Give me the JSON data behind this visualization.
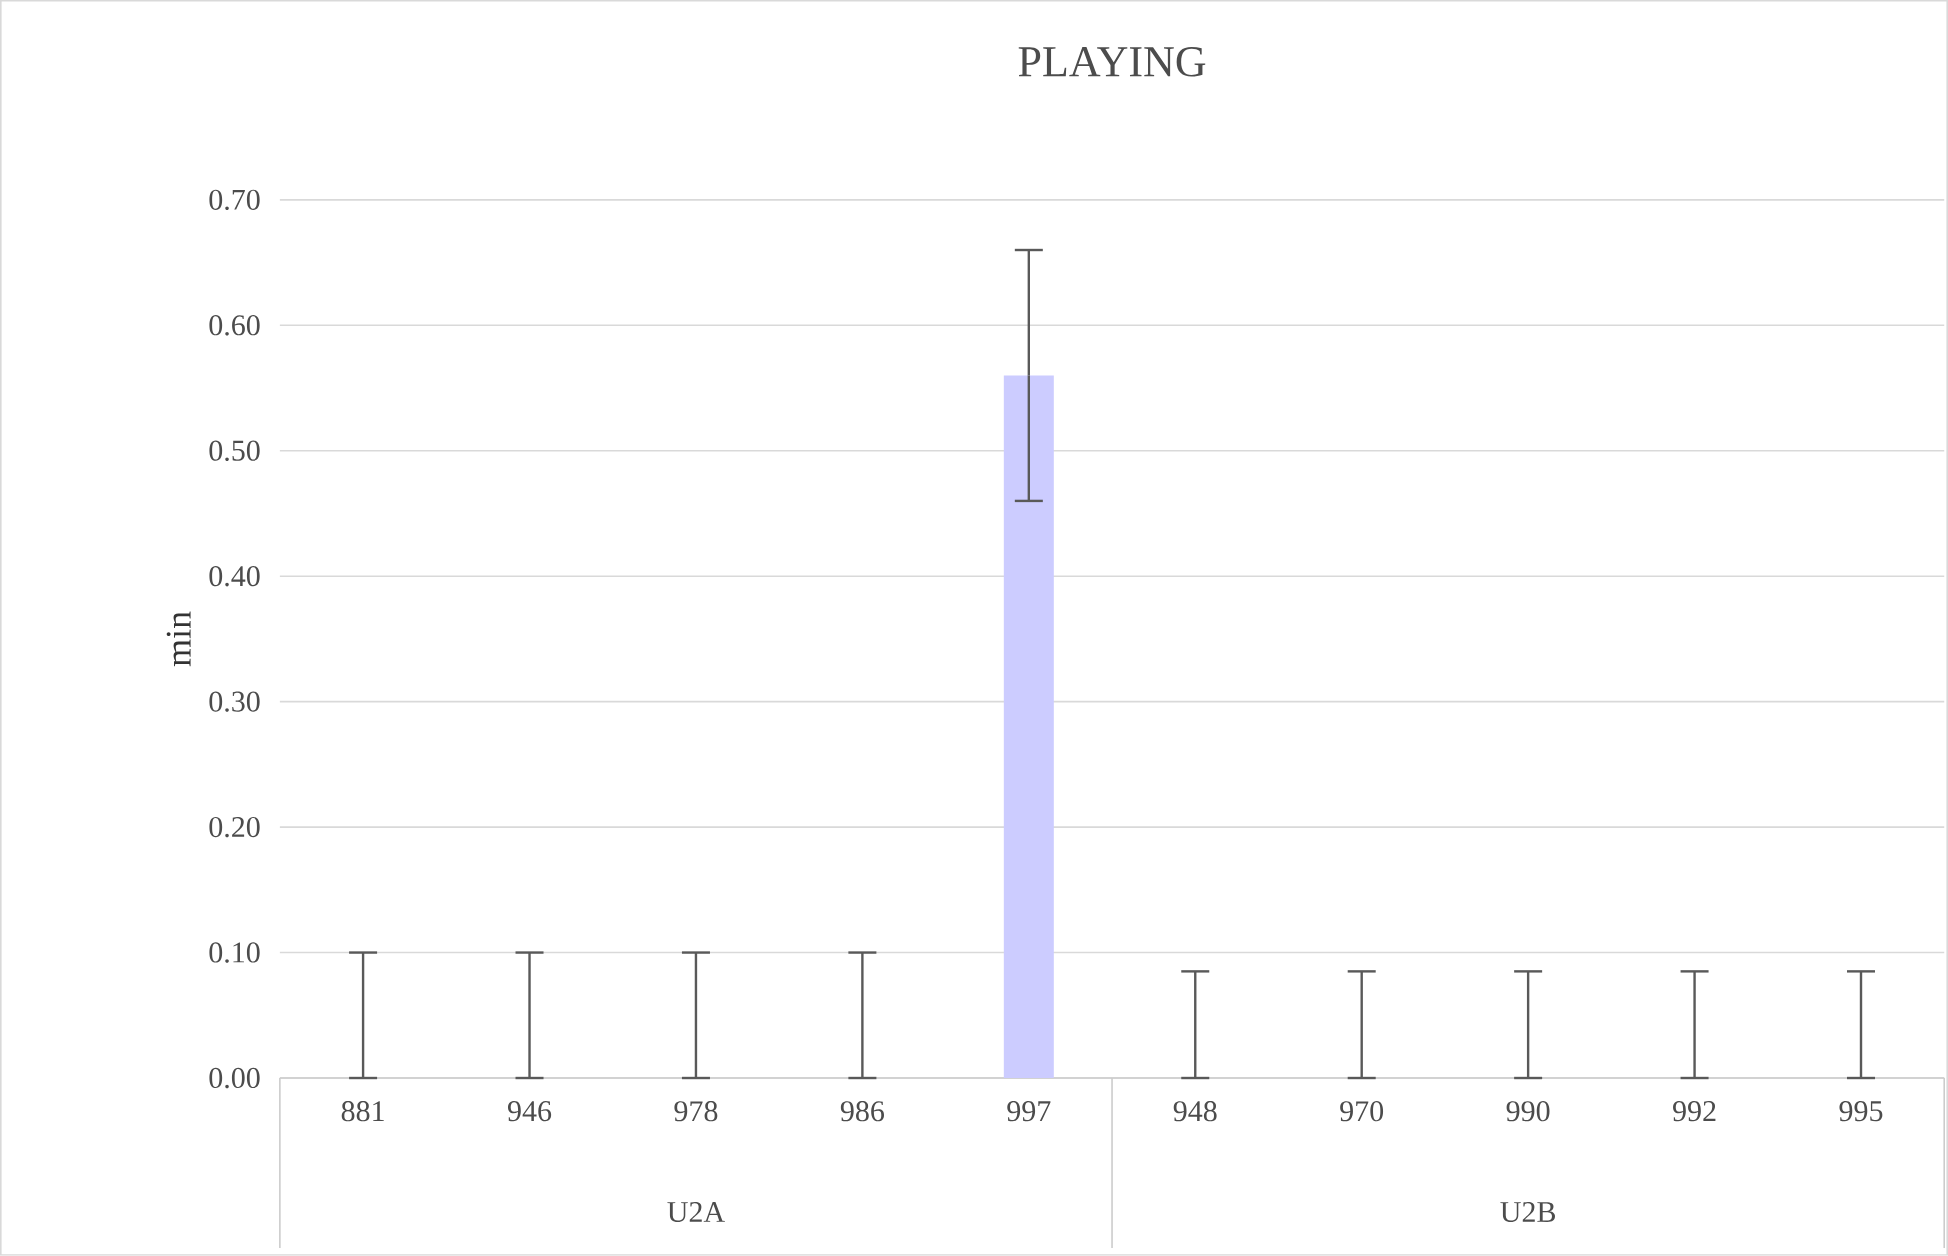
{
  "chart_data": {
    "type": "bar",
    "title": "PLAYING",
    "ylabel": "min",
    "categories": [
      "881",
      "946",
      "978",
      "986",
      "997",
      "948",
      "970",
      "990",
      "992",
      "995"
    ],
    "values": [
      0,
      0,
      0,
      0,
      0.56,
      0,
      0,
      0,
      0,
      0
    ],
    "errors": [
      [
        0,
        0.1
      ],
      [
        0,
        0.1
      ],
      [
        0,
        0.1
      ],
      [
        0,
        0.1
      ],
      [
        0.46,
        0.66
      ],
      [
        0,
        0.085
      ],
      [
        0,
        0.085
      ],
      [
        0,
        0.085
      ],
      [
        0,
        0.085
      ],
      [
        0,
        0.085
      ]
    ],
    "color": "#ccccff",
    "ylim": [
      0,
      0.7
    ],
    "yticks": [
      {
        "value": 0,
        "label": "0.00"
      },
      {
        "value": 0.1,
        "label": "0.10"
      },
      {
        "value": 0.2,
        "label": "0.20"
      },
      {
        "value": 0.3,
        "label": "0.30"
      },
      {
        "value": 0.4,
        "label": "0.40"
      },
      {
        "value": 0.5,
        "label": "0.50"
      },
      {
        "value": 0.6,
        "label": "0.60"
      },
      {
        "value": 0.7,
        "label": "0.70"
      }
    ],
    "grid": "y",
    "annotations": [
      "U2A",
      "U2B"
    ]
  }
}
